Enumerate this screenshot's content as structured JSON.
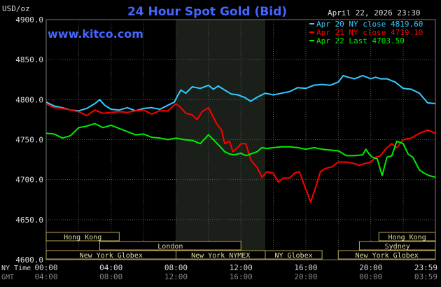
{
  "chart_data": {
    "type": "line",
    "title": "24 Hour Spot Gold (Bid)",
    "subtitle_left": "USD/oz",
    "date_label": "April 22, 2026 23:30",
    "watermark": "www.kitco.com",
    "ylim": [
      4600,
      4900
    ],
    "y_ticks": [
      4600,
      4650,
      4700,
      4750,
      4800,
      4850,
      4900
    ],
    "y_tick_labels": [
      "4600.0",
      "4650.0",
      "4700.0",
      "4750.0",
      "4800.0",
      "4850.0",
      "4900.0"
    ],
    "x_label_rows": [
      {
        "label": "NY Time",
        "ticks": [
          "00:00",
          "04:00",
          "08:00",
          "12:00",
          "16:00",
          "20:00",
          "23:59"
        ]
      },
      {
        "label": "GMT",
        "ticks": [
          "04:00",
          "08:00",
          "12:00",
          "16:00",
          "20:00",
          "00:00",
          "03:59"
        ]
      }
    ],
    "x_tick_hours": [
      0,
      4,
      8,
      12,
      16,
      20,
      23.983
    ],
    "xlim_hours": [
      0,
      23.983
    ],
    "highlight_hours": [
      8,
      13.5
    ],
    "grid": true,
    "legend": "top-right",
    "series": [
      {
        "name": "Apr 20 NY close 4819.60",
        "color": "#33ccff",
        "x": [
          0,
          0.5,
          1,
          1.5,
          2,
          2.5,
          3,
          3.3,
          3.6,
          4,
          4.5,
          5,
          5.5,
          6,
          6.5,
          7,
          7.5,
          7.9,
          8.1,
          8.3,
          8.6,
          9,
          9.5,
          10,
          10.3,
          10.6,
          11,
          11.4,
          11.8,
          12.2,
          12.6,
          13,
          13.5,
          14,
          14.5,
          15,
          15.5,
          16,
          16.5,
          17,
          17.5,
          18,
          18.3,
          18.6,
          19,
          19.5,
          20,
          20.3,
          20.6,
          21,
          21.5,
          22,
          22.5,
          23,
          23.5,
          23.983
        ],
        "y": [
          4797,
          4792,
          4790,
          4787,
          4786,
          4789,
          4795,
          4800,
          4793,
          4788,
          4787,
          4790,
          4786,
          4789,
          4790,
          4788,
          4793,
          4797,
          4805,
          4812,
          4808,
          4816,
          4814,
          4818,
          4813,
          4817,
          4812,
          4807,
          4806,
          4803,
          4798,
          4803,
          4808,
          4806,
          4808,
          4810,
          4815,
          4814,
          4818,
          4819,
          4818,
          4822,
          4830,
          4828,
          4826,
          4830,
          4826,
          4828,
          4826,
          4826,
          4822,
          4814,
          4813,
          4808,
          4796,
          4795
        ]
      },
      {
        "name": "Apr 21 NY close 4719.10",
        "color": "#ff0000",
        "x": [
          0,
          0.5,
          1,
          1.5,
          2,
          2.5,
          3,
          3.5,
          4,
          4.5,
          5,
          5.5,
          6,
          6.5,
          7,
          7.5,
          8,
          8.3,
          8.6,
          9,
          9.3,
          9.6,
          10,
          10.3,
          10.5,
          10.8,
          11,
          11.3,
          11.5,
          11.8,
          12,
          12.3,
          12.6,
          13,
          13.3,
          13.6,
          14,
          14.3,
          14.6,
          15,
          15.3,
          15.6,
          16,
          16.3,
          16.6,
          16.9,
          17.2,
          17.6,
          18,
          18.5,
          19,
          19.3,
          19.6,
          20,
          20.3,
          20.6,
          21,
          21.3,
          21.6,
          22,
          22.5,
          23,
          23.5,
          23.983
        ],
        "y": [
          4795,
          4790,
          4789,
          4787,
          4785,
          4780,
          4787,
          4783,
          4784,
          4785,
          4784,
          4786,
          4787,
          4782,
          4786,
          4786,
          4795,
          4790,
          4783,
          4781,
          4775,
          4785,
          4790,
          4778,
          4770,
          4762,
          4745,
          4748,
          4735,
          4740,
          4745,
          4745,
          4725,
          4715,
          4703,
          4710,
          4708,
          4697,
          4702,
          4702,
          4708,
          4710,
          4688,
          4672,
          4690,
          4710,
          4714,
          4716,
          4722,
          4722,
          4720,
          4718,
          4720,
          4722,
          4728,
          4730,
          4740,
          4745,
          4740,
          4750,
          4752,
          4758,
          4762,
          4758
        ]
      },
      {
        "name": "Apr 22 Last 4703.50",
        "color": "#00ee00",
        "x": [
          0,
          0.5,
          1,
          1.5,
          2,
          2.5,
          3,
          3.5,
          4,
          4.5,
          5,
          5.5,
          6,
          6.5,
          7,
          7.5,
          8,
          8.5,
          9,
          9.5,
          10,
          10.3,
          10.6,
          11,
          11.3,
          11.6,
          12,
          12.3,
          12.6,
          13,
          13.3,
          13.6,
          14,
          14.5,
          15,
          15.5,
          16,
          16.5,
          17,
          17.5,
          18,
          18.5,
          19,
          19.5,
          19.7,
          19.9,
          20.1,
          20.4,
          20.7,
          21,
          21.3,
          21.6,
          22,
          22.3,
          22.6,
          23,
          23.3,
          23.6,
          23.983
        ],
        "y": [
          4758,
          4757,
          4752,
          4755,
          4765,
          4767,
          4770,
          4765,
          4768,
          4764,
          4760,
          4756,
          4757,
          4753,
          4752,
          4750,
          4752,
          4750,
          4749,
          4745,
          4756,
          4750,
          4744,
          4735,
          4732,
          4731,
          4733,
          4730,
          4732,
          4735,
          4740,
          4739,
          4740,
          4741,
          4741,
          4740,
          4738,
          4740,
          4738,
          4737,
          4736,
          4730,
          4730,
          4731,
          4738,
          4732,
          4728,
          4726,
          4705,
          4728,
          4730,
          4748,
          4745,
          4732,
          4728,
          4712,
          4708,
          4705,
          4703
        ]
      }
    ],
    "market_sessions": [
      {
        "name": "Hong Kong",
        "start": 0,
        "end": 4.5,
        "row": 0
      },
      {
        "name": "London",
        "start": 3.3,
        "end": 12.0,
        "row": 1
      },
      {
        "name": "New York Globex",
        "start": 0,
        "end": 8.0,
        "row": 2
      },
      {
        "name": "New York NYMEX",
        "start": 8.0,
        "end": 13.5,
        "row": 2
      },
      {
        "name": "NY Globex",
        "start": 13.5,
        "end": 17.0,
        "row": 2
      },
      {
        "name": "Sydney",
        "start": 19.3,
        "end": 23.983,
        "row": 1
      },
      {
        "name": "Hong Kong",
        "start": 20.5,
        "end": 23.983,
        "row": 0
      },
      {
        "name": "New York Globex",
        "start": 18.0,
        "end": 23.983,
        "row": 2
      }
    ],
    "colors": {
      "background": "#000000",
      "grid": "#555555",
      "title": "#4466ff",
      "watermark": "#4466ff",
      "text": "#dddddd",
      "dim_text": "#888888",
      "session_border": "#bba555",
      "session_text": "#ddddaa",
      "highlight": "#1a1f1a"
    }
  }
}
